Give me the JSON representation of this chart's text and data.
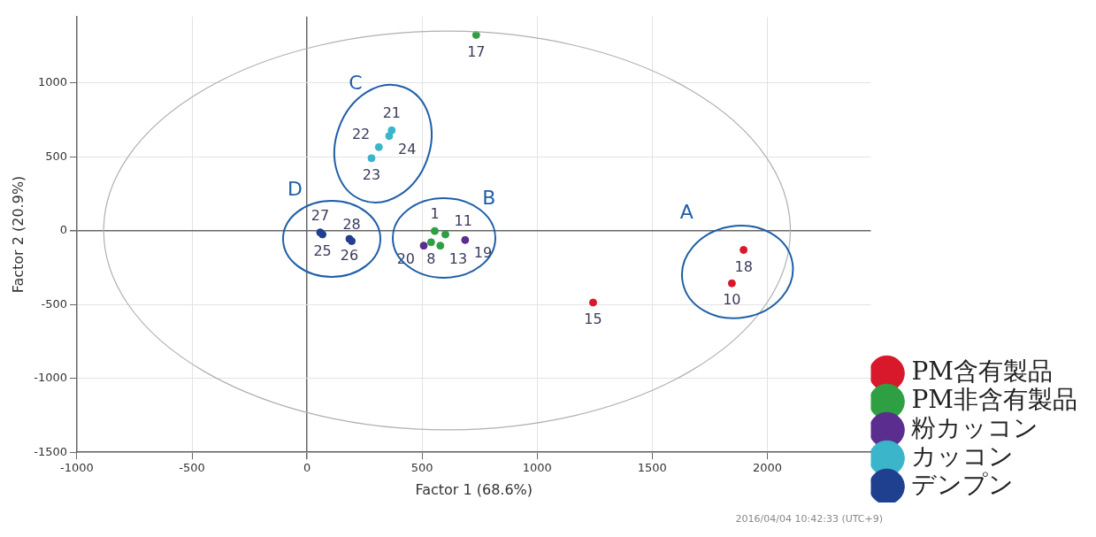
{
  "chart_data": {
    "type": "scatter",
    "xlabel": "Factor 1 (68.6%)",
    "ylabel": "Factor 2 (20.9%)",
    "series": [
      {
        "name": "PM含有製品",
        "color": "#d7192b",
        "x": [
          1243,
          1897,
          1846
        ],
        "values": [
          -486,
          -130,
          -356
        ]
      },
      {
        "name": "PM非含有製品",
        "color": "#2ea043",
        "x": [
          735,
          555,
          539,
          601,
          579
        ],
        "values": [
          1326,
          -2,
          -78,
          -25,
          -101
        ]
      },
      {
        "name": "粉カッコン",
        "color": "#5b2d8e",
        "x": [
          687,
          507
        ],
        "values": [
          -63,
          -101
        ]
      },
      {
        "name": "カッコン",
        "color": "#3ab5c9",
        "x": [
          368,
          357,
          312,
          280
        ],
        "values": [
          680,
          642,
          566,
          491
        ]
      },
      {
        "name": "デンプン",
        "color": "#1f3f8f",
        "x": [
          67,
          184,
          57,
          194
        ],
        "values": [
          -25,
          -55,
          -11,
          -70
        ]
      }
    ],
    "xlim": [
      -1000,
      2450
    ],
    "xticks": [
      -1000,
      -500,
      0,
      500,
      1000,
      1500,
      2000
    ],
    "ylim": [
      -1500,
      1450
    ],
    "yticks": [
      -1500,
      -1000,
      -500,
      0,
      500,
      1000
    ],
    "grid": true,
    "legend": "right",
    "marker": "circle",
    "annotations": [
      {
        "text": "15",
        "x": 1243,
        "y": -486
      },
      {
        "text": "18",
        "x": 1897,
        "y": -130
      },
      {
        "text": "10",
        "x": 1846,
        "y": -356
      },
      {
        "text": "17",
        "x": 735,
        "y": 1326
      },
      {
        "text": "1",
        "x": 555,
        "y": -2
      },
      {
        "text": "8",
        "x": 539,
        "y": -78
      },
      {
        "text": "11",
        "x": 601,
        "y": -25
      },
      {
        "text": "13",
        "x": 579,
        "y": -101
      },
      {
        "text": "19",
        "x": 687,
        "y": -63
      },
      {
        "text": "20",
        "x": 507,
        "y": -101
      },
      {
        "text": "21",
        "x": 368,
        "y": 680
      },
      {
        "text": "24",
        "x": 357,
        "y": 642
      },
      {
        "text": "22",
        "x": 312,
        "y": 566
      },
      {
        "text": "23",
        "x": 280,
        "y": 491
      },
      {
        "text": "25",
        "x": 67,
        "y": -25
      },
      {
        "text": "26",
        "x": 184,
        "y": -55
      },
      {
        "text": "27",
        "x": 57,
        "y": -11
      },
      {
        "text": "28",
        "x": 194,
        "y": -70
      },
      "A",
      "B",
      "C",
      "D",
      "2016/04/04 10:42:33 (UTC+9)"
    ]
  }
}
